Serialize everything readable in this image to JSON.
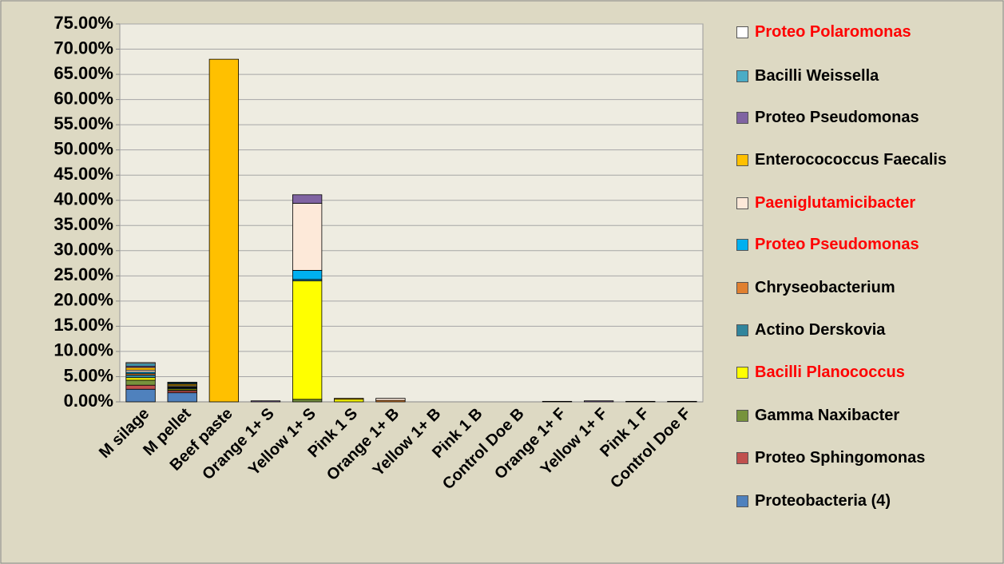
{
  "chart_data": {
    "type": "stacked_bar",
    "categories": [
      "M silage",
      "M pellet",
      "Beef paste",
      "Orange 1+ S",
      "Yellow 1+ S",
      "Pink 1 S",
      "Orange 1+ B",
      "Yellow 1+ B",
      "Pink 1 B",
      "Control Doe B",
      "Orange 1+ F",
      "Yellow 1+ F",
      "Pink 1 F",
      "Control Doe F"
    ],
    "ylim": [
      0,
      75
    ],
    "yticks": [
      {
        "value": 0,
        "label": "0.00%"
      },
      {
        "value": 5,
        "label": "5.00%"
      },
      {
        "value": 10,
        "label": "10.00%"
      },
      {
        "value": 15,
        "label": "15.00%"
      },
      {
        "value": 20,
        "label": "20.00%"
      },
      {
        "value": 25,
        "label": "25.00%"
      },
      {
        "value": 30,
        "label": "30.00%"
      },
      {
        "value": 35,
        "label": "35.00%"
      },
      {
        "value": 40,
        "label": "40.00%"
      },
      {
        "value": 45,
        "label": "45.00%"
      },
      {
        "value": 50,
        "label": "50.00%"
      },
      {
        "value": 55,
        "label": "55.00%"
      },
      {
        "value": 60,
        "label": "60.00%"
      },
      {
        "value": 65,
        "label": "65.00%"
      },
      {
        "value": 70,
        "label": "70.00%"
      },
      {
        "value": 75,
        "label": "75.00%"
      }
    ],
    "grid": true,
    "legend": "right",
    "series": [
      {
        "name": "Proteobacteria (4)",
        "color": "#4f81bd",
        "label_color": "#000000",
        "values": [
          2.5,
          1.8,
          0,
          0,
          0,
          0,
          0,
          0,
          0,
          0,
          0,
          0,
          0,
          0
        ]
      },
      {
        "name": "Proteo Sphingomonas",
        "color": "#c0504d",
        "label_color": "#000000",
        "values": [
          0.8,
          0.4,
          0,
          0,
          0,
          0,
          0,
          0,
          0,
          0,
          0,
          0,
          0,
          0
        ]
      },
      {
        "name": "Gamma Naxibacter",
        "color": "#77933c",
        "label_color": "#000000",
        "values": [
          1.0,
          0.2,
          0,
          0,
          0.5,
          0,
          0,
          0,
          0,
          0,
          0,
          0,
          0,
          0
        ]
      },
      {
        "name": "Bacilli Planococcus",
        "color": "#ffff00",
        "label_color": "#ff0000",
        "values": [
          0.5,
          0.2,
          0,
          0,
          23.5,
          0.5,
          0,
          0,
          0,
          0,
          0,
          0,
          0,
          0
        ]
      },
      {
        "name": "Actino Derskovia",
        "color": "#31859c",
        "label_color": "#000000",
        "values": [
          0.5,
          0.2,
          0,
          0,
          0.3,
          0,
          0,
          0,
          0,
          0,
          0,
          0,
          0,
          0
        ]
      },
      {
        "name": "Chryseobacterium",
        "color": "#e08030",
        "label_color": "#000000",
        "values": [
          0.3,
          0.1,
          0,
          0,
          0,
          0,
          0.3,
          0,
          0,
          0,
          0,
          0,
          0,
          0
        ]
      },
      {
        "name": "Proteo Pseudomonas",
        "color": "#00b0f0",
        "label_color": "#ff0000",
        "values": [
          0.3,
          0.1,
          0,
          0,
          1.8,
          0,
          0,
          0,
          0,
          0,
          0,
          0,
          0,
          0
        ]
      },
      {
        "name": "Paeniglutamicibacter",
        "color": "#fde9d9",
        "label_color": "#ff0000",
        "values": [
          0.4,
          0.2,
          0,
          0,
          13.3,
          0,
          0.4,
          0,
          0,
          0,
          0,
          0,
          0,
          0
        ]
      },
      {
        "name": "Enterocococcus Faecalis",
        "color": "#ffc000",
        "label_color": "#000000",
        "values": [
          0.5,
          0.3,
          68,
          0,
          0,
          0.2,
          0,
          0,
          0,
          0,
          0,
          0,
          0,
          0
        ]
      },
      {
        "name": "Proteo Pseudomonas",
        "color": "#8064a2",
        "label_color": "#000000",
        "values": [
          0.3,
          0.1,
          0,
          0.2,
          1.7,
          0,
          0,
          0,
          0,
          0,
          0.1,
          0.2,
          0.1,
          0.1
        ]
      },
      {
        "name": "Bacilli Weissella",
        "color": "#4bacc6",
        "label_color": "#000000",
        "values": [
          0.5,
          0.2,
          0,
          0,
          0,
          0,
          0,
          0,
          0,
          0,
          0,
          0,
          0,
          0
        ]
      },
      {
        "name": "Proteo Polaromonas",
        "color": "#ffffff",
        "label_color": "#ff0000",
        "values": [
          0.2,
          0.1,
          0,
          0,
          0,
          0,
          0,
          0,
          0,
          0,
          0,
          0,
          0,
          0
        ]
      }
    ]
  }
}
